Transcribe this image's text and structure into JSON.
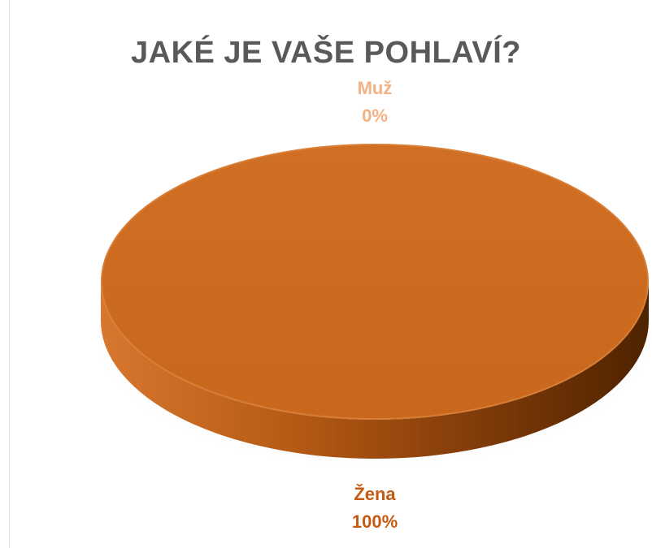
{
  "chart_data": {
    "type": "pie",
    "title": "JAKÉ JE VAŠE POHLAVÍ?",
    "categories": [
      "Muž",
      "Žena"
    ],
    "values": [
      0,
      100
    ],
    "labels": [
      {
        "category": "Muž",
        "value_text": "0%"
      },
      {
        "category": "Žena",
        "value_text": "100%"
      }
    ],
    "colors": {
      "Muž": "#f4b183",
      "Žena": "#c55a11",
      "title": "#595959"
    },
    "style": "3d",
    "legend": "none"
  }
}
